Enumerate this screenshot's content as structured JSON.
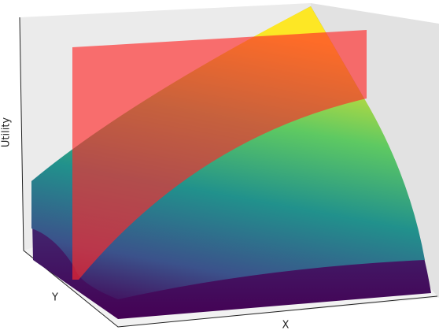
{
  "chart_data": {
    "type": "surface",
    "xlabel": "X",
    "ylabel": "Y",
    "zlabel": "Utility"
  }
}
